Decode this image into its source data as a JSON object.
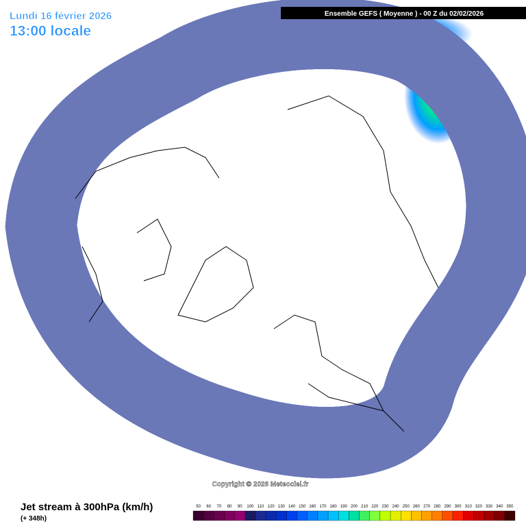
{
  "header": {
    "date": "Lundi 16 février 2026",
    "time": "13:00 locale",
    "run": "Ensemble GEFS  ( Moyenne )  -  00 Z du 02/02/2026"
  },
  "copyright": "Copyright © 2026 Meteociel.fr",
  "legend": {
    "title": "Jet stream à 300hPa (km/h)",
    "lead": "(+ 348h)",
    "labels": [
      50,
      60,
      70,
      80,
      90,
      100,
      110,
      120,
      130,
      140,
      150,
      160,
      170,
      180,
      190,
      200,
      210,
      220,
      230,
      240,
      250,
      260,
      270,
      280,
      290,
      300,
      310,
      320,
      330,
      340,
      350
    ],
    "colors": [
      "#3a0030",
      "#55003f",
      "#6a0050",
      "#800060",
      "#950070",
      "#1a1a60",
      "#1a2a90",
      "#0a2ab0",
      "#0030d0",
      "#0040f0",
      "#0060ff",
      "#0080ff",
      "#00a0ff",
      "#00c0ff",
      "#00e0e0",
      "#00e0a0",
      "#40f060",
      "#80ff40",
      "#c0ff00",
      "#e0f000",
      "#ffe000",
      "#ffc000",
      "#ffa000",
      "#ff8000",
      "#ff5000",
      "#ff2000",
      "#e00000",
      "#c00000",
      "#a00000",
      "#800000",
      "#400000"
    ]
  }
}
